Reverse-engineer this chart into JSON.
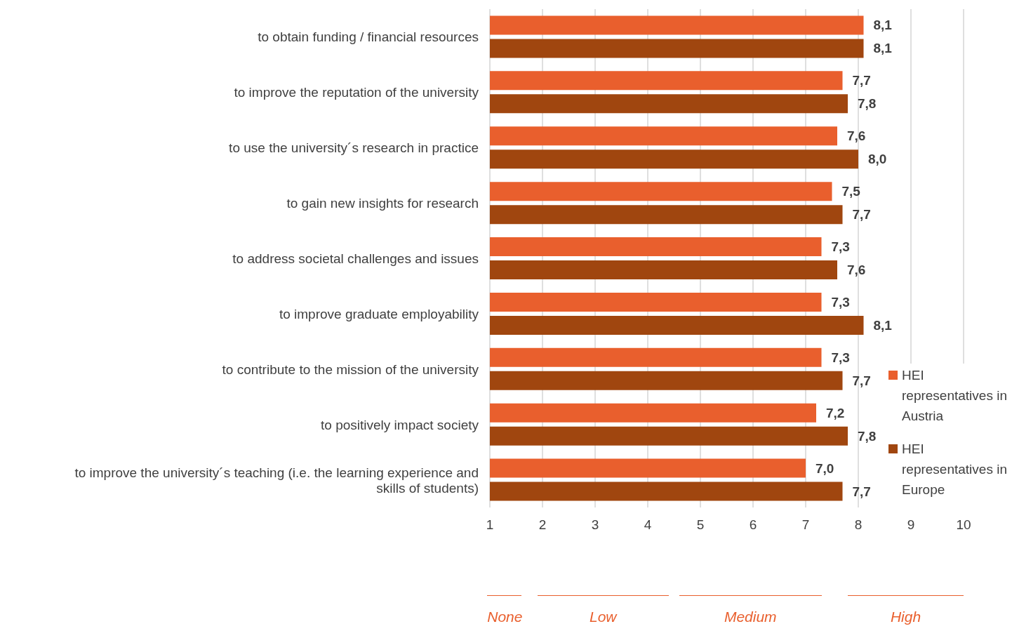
{
  "chart_data": {
    "type": "bar",
    "orientation": "horizontal",
    "categories": [
      "to obtain funding / financial resources",
      "to improve the reputation of the university",
      "to use the university´s research in practice",
      "to gain new insights for research",
      "to address societal challenges and issues",
      "to improve graduate employability",
      "to contribute to the mission of the university",
      "to positively impact society",
      "to improve the university´s teaching (i.e. the learning experience and skills of students)"
    ],
    "series": [
      {
        "name": "HEI representatives in Austria",
        "color": "#e95f2d",
        "values": [
          8.1,
          7.7,
          7.6,
          7.5,
          7.3,
          7.3,
          7.3,
          7.2,
          7.0
        ],
        "value_labels": [
          "8,1",
          "7,7",
          "7,6",
          "7,5",
          "7,3",
          "7,3",
          "7,3",
          "7,2",
          "7,0"
        ]
      },
      {
        "name": "HEI representatives in Europe",
        "color": "#a0460f",
        "values": [
          8.1,
          7.8,
          8.0,
          7.7,
          7.6,
          8.1,
          7.7,
          7.8,
          7.7
        ],
        "value_labels": [
          "8,1",
          "7,8",
          "8,0",
          "7,7",
          "7,6",
          "8,1",
          "7,7",
          "7,8",
          "7,7"
        ]
      }
    ],
    "xlim": [
      1,
      10
    ],
    "xticks": [
      1,
      2,
      3,
      4,
      5,
      6,
      7,
      8,
      9,
      10
    ],
    "grid": "x",
    "legend": "right",
    "annotations": [
      "None",
      "Low",
      "Medium",
      "High"
    ]
  }
}
